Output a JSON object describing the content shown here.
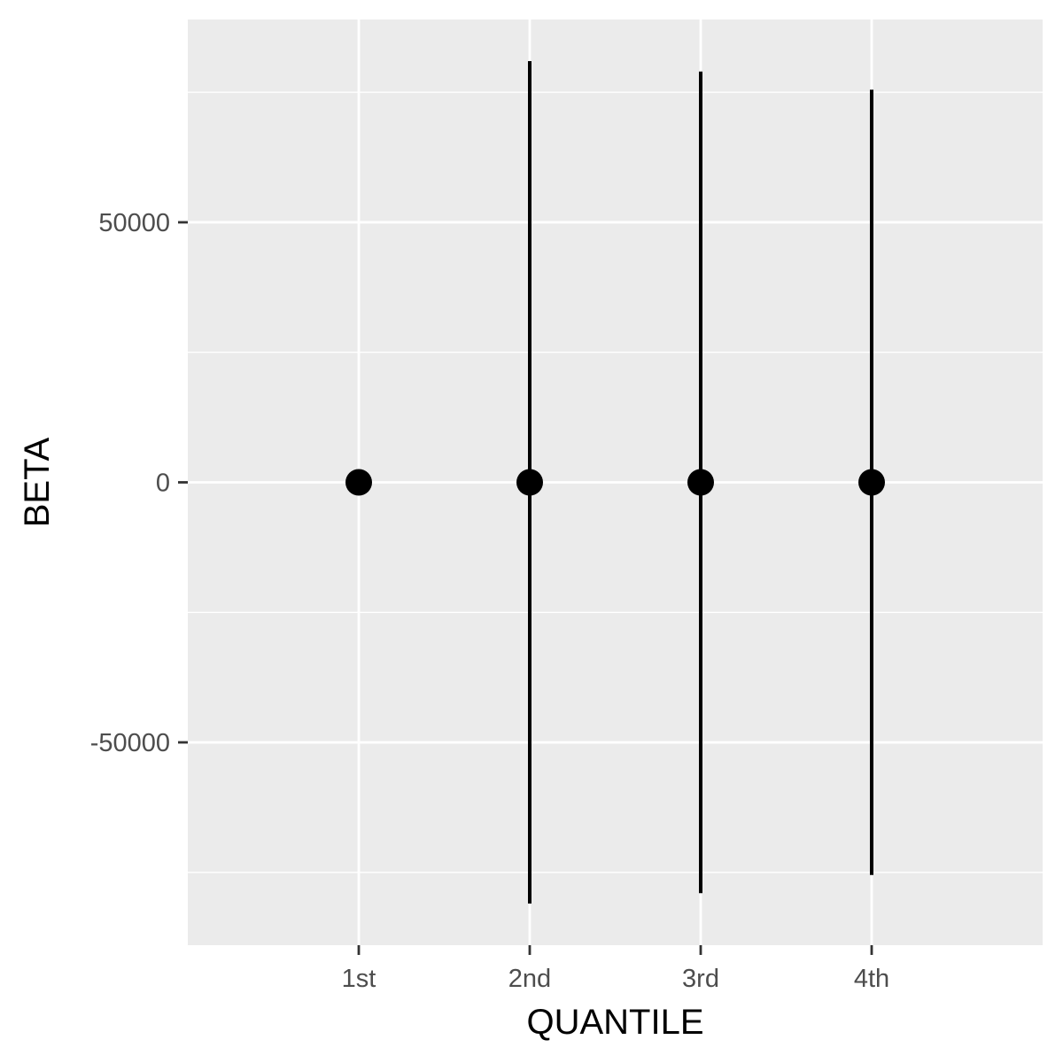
{
  "chart_data": {
    "type": "scatter",
    "title": "",
    "xlabel": "QUANTILE",
    "ylabel": "BETA",
    "categories": [
      "1st",
      "2nd",
      "3rd",
      "4th"
    ],
    "series": [
      {
        "values": [
          0,
          0,
          0,
          0
        ],
        "ymin": [
          null,
          -81000,
          -79000,
          -75500
        ],
        "ymax": [
          null,
          81000,
          79000,
          75500
        ]
      }
    ],
    "ylim": [
      -89000,
      89000
    ],
    "yticks": [
      -50000,
      0,
      50000
    ],
    "ytick_labels": [
      "-50000",
      "0",
      "50000"
    ],
    "grid": true,
    "legend": "none",
    "colors": {
      "panel_background": "#ebebeb",
      "grid_line": "#ffffff",
      "point": "#000000",
      "error_bar": "#000000",
      "tick_text": "#4d4d4d",
      "axis_title": "#000000"
    }
  }
}
